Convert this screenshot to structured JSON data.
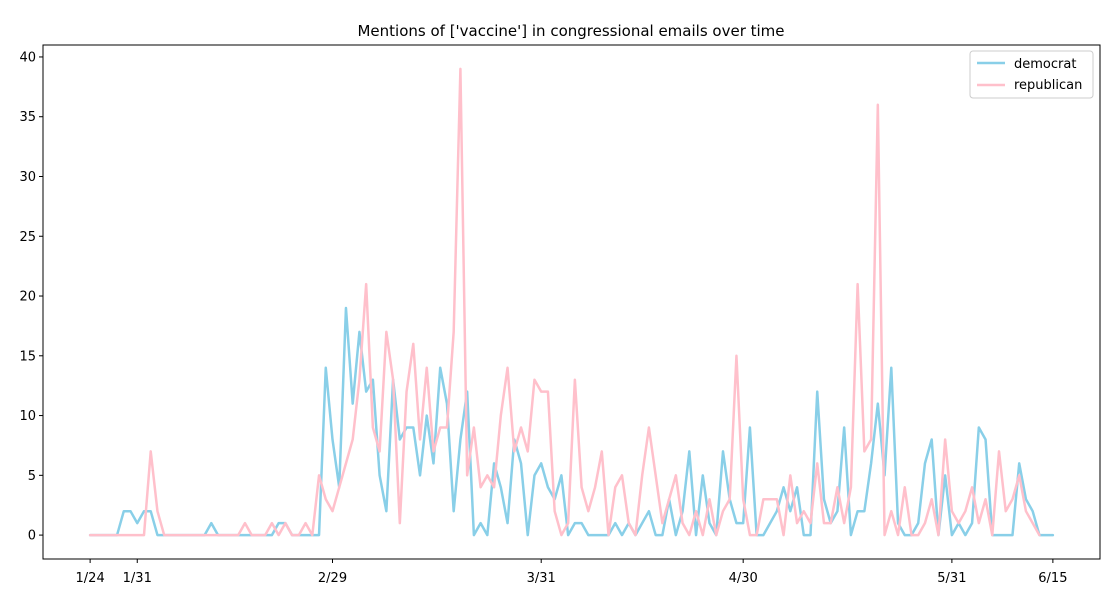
{
  "chart_data": {
    "type": "line",
    "title": "Mentions of ['vaccine'] in congressional emails over time",
    "xlabel": "",
    "ylabel": "",
    "x_ticks": [
      "1/24",
      "1/31",
      "2/29",
      "3/31",
      "4/30",
      "5/31",
      "6/15"
    ],
    "x_tick_days": [
      0,
      7,
      36,
      67,
      97,
      128,
      143
    ],
    "x_range_days": [
      -7,
      150
    ],
    "ylim": [
      -2,
      41
    ],
    "y_ticks": [
      0,
      5,
      10,
      15,
      20,
      25,
      30,
      35,
      40
    ],
    "grid": false,
    "legend_position": "top-right",
    "series": [
      {
        "name": "democrat",
        "color": "#89cfe8",
        "values": [
          0,
          0,
          0,
          0,
          0,
          2,
          2,
          1,
          2,
          2,
          0,
          0,
          0,
          0,
          0,
          0,
          0,
          0,
          1,
          0,
          0,
          0,
          0,
          0,
          0,
          0,
          0,
          0,
          1,
          1,
          0,
          0,
          0,
          0,
          0,
          14,
          8,
          4,
          19,
          11,
          17,
          12,
          13,
          5,
          2,
          13,
          8,
          9,
          9,
          5,
          10,
          6,
          14,
          11,
          2,
          8,
          12,
          0,
          1,
          0,
          6,
          4,
          1,
          8,
          6,
          0,
          5,
          6,
          4,
          3,
          5,
          0,
          1,
          1,
          0,
          0,
          0,
          0,
          1,
          0,
          1,
          0,
          1,
          2,
          0,
          0,
          3,
          0,
          2,
          7,
          0,
          5,
          1,
          0,
          7,
          3,
          1,
          1,
          9,
          0,
          0,
          1,
          2,
          4,
          2,
          4,
          0,
          0,
          12,
          3,
          1,
          2,
          9,
          0,
          2,
          2,
          6,
          11,
          5,
          14,
          1,
          0,
          0,
          1,
          6,
          8,
          0,
          5,
          0,
          1,
          0,
          1,
          9,
          8,
          0,
          0,
          0,
          0,
          6,
          3,
          2,
          0,
          0,
          0
        ]
      },
      {
        "name": "republican",
        "color": "#ffc0cb",
        "values": [
          0,
          0,
          0,
          0,
          0,
          0,
          0,
          0,
          0,
          7,
          2,
          0,
          0,
          0,
          0,
          0,
          0,
          0,
          0,
          0,
          0,
          0,
          0,
          1,
          0,
          0,
          0,
          1,
          0,
          1,
          0,
          0,
          1,
          0,
          5,
          3,
          2,
          4,
          6,
          8,
          13,
          21,
          9,
          7,
          17,
          13,
          1,
          12,
          16,
          8,
          14,
          7,
          9,
          9,
          17,
          39,
          5,
          9,
          4,
          5,
          4,
          10,
          14,
          7,
          9,
          7,
          13,
          12,
          12,
          2,
          0,
          1,
          13,
          4,
          2,
          4,
          7,
          0,
          4,
          5,
          1,
          0,
          5,
          9,
          5,
          1,
          3,
          5,
          1,
          0,
          2,
          0,
          3,
          0,
          2,
          3,
          15,
          3,
          0,
          0,
          3,
          3,
          3,
          0,
          5,
          1,
          2,
          1,
          6,
          1,
          1,
          4,
          1,
          4,
          21,
          7,
          8,
          36,
          0,
          2,
          0,
          4,
          0,
          0,
          1,
          3,
          0,
          8,
          2,
          1,
          2,
          4,
          1,
          3,
          0,
          7,
          2,
          3,
          5,
          2,
          1,
          0
        ]
      }
    ]
  }
}
